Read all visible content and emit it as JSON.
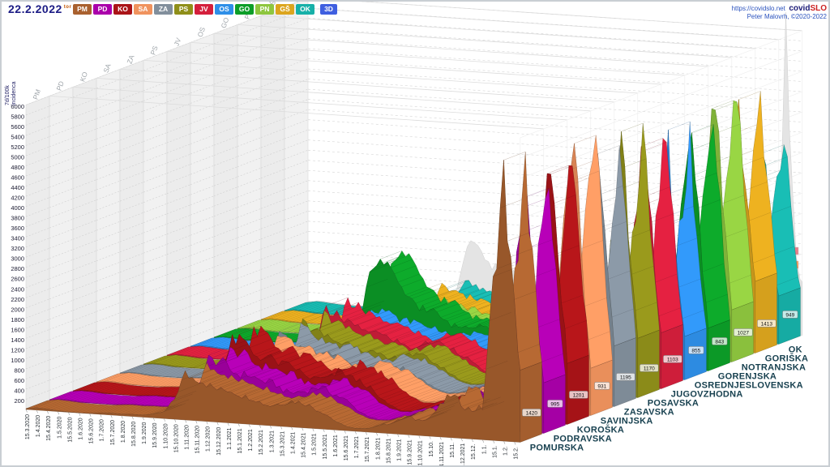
{
  "header": {
    "date": "22.2.2022",
    "day_abbrev": "tor",
    "mode_button": "3D",
    "mode_color": "#3f5fe0",
    "link": "https://covidslo.net",
    "brand_part1": "covid",
    "brand_part2": "SLO",
    "credit": "Peter Malovrh, ©2020-2022"
  },
  "axes": {
    "y_title_line1": "7d/100k",
    "y_title_line2": "incidenca",
    "y_min": 0,
    "y_max": 6000,
    "y_step": 200,
    "x_ticks": [
      "15.3.2020",
      "1.4.2020",
      "15.4.2020",
      "1.5.2020",
      "15.5.2020",
      "1.6.2020",
      "15.6.2020",
      "1.7.2020",
      "15.7.2020",
      "1.8.2020",
      "15.8.2020",
      "1.9.2020",
      "15.9.2020",
      "1.10.2020",
      "15.10.2020",
      "1.11.2020",
      "15.11.2020",
      "1.12.2020",
      "15.12.2020",
      "1.1.2021",
      "15.1.2021",
      "1.2.2021",
      "15.2.2021",
      "1.3.2021",
      "15.3.2021",
      "1.4.2021",
      "15.4.2021",
      "1.5.2021",
      "15.5.2021",
      "1.6.2021",
      "15.6.2021",
      "1.7.2021",
      "15.7.2021",
      "1.8.2021",
      "15.8.2021",
      "1.9.2021",
      "15.9.2021",
      "1.10.2021",
      "15.10.",
      "1.11.2021",
      "15.11.",
      "1.12.2021",
      "15.12.",
      "1.1.",
      "15.1.",
      "1.2.",
      "15.2."
    ]
  },
  "chart_data": {
    "type": "area",
    "projection": "3d-ribbons",
    "title": "",
    "ylabel": "7d/100k incidenca",
    "ylim": [
      0,
      6000
    ],
    "categories": [
      "15.3.2020",
      "1.4.2020",
      "15.4.2020",
      "1.5.2020",
      "15.5.2020",
      "1.6.2020",
      "15.6.2020",
      "1.7.2020",
      "15.7.2020",
      "1.8.2020",
      "15.8.2020",
      "1.9.2020",
      "15.9.2020",
      "1.10.2020",
      "15.10.2020",
      "1.11.2020",
      "15.11.2020",
      "1.12.2020",
      "15.12.2020",
      "1.1.2021",
      "15.1.2021",
      "1.2.2021",
      "15.2.2021",
      "1.3.2021",
      "15.3.2021",
      "1.4.2021",
      "15.4.2021",
      "1.5.2021",
      "15.5.2021",
      "1.6.2021",
      "15.6.2021",
      "1.7.2021",
      "15.7.2021",
      "1.8.2021",
      "15.8.2021",
      "1.9.2021",
      "15.9.2021",
      "1.10.2021",
      "15.10.2021",
      "1.11.2021",
      "15.11.2021",
      "1.12.2021",
      "15.12.2021",
      "1.1.2022",
      "15.1.2022",
      "1.2.2022",
      "15.2.2022",
      "22.2.2022"
    ],
    "series": [
      {
        "code": "PM",
        "name": "POMURSKA",
        "color": "#a9612f",
        "end_label": "1420",
        "values": [
          15,
          45,
          35,
          15,
          6,
          5,
          8,
          25,
          40,
          35,
          40,
          45,
          70,
          133,
          400,
          900,
          855,
          720,
          665,
          630,
          590,
          530,
          450,
          400,
          435,
          530,
          485,
          425,
          325,
          190,
          95,
          55,
          65,
          130,
          190,
          260,
          350,
          310,
          360,
          620,
          820,
          700,
          560,
          620,
          3100,
          5050,
          2700,
          1420
        ]
      },
      {
        "code": "PD",
        "name": "PODRAVSKA",
        "color": "#aa00aa",
        "end_label": "995",
        "values": [
          15,
          45,
          35,
          15,
          6,
          5,
          8,
          25,
          40,
          35,
          40,
          45,
          70,
          155,
          465,
          1050,
          1000,
          840,
          775,
          730,
          685,
          620,
          520,
          465,
          510,
          620,
          565,
          495,
          375,
          220,
          110,
          52,
          62,
          124,
          180,
          247,
          332,
          295,
          342,
          590,
          780,
          665,
          530,
          590,
          3220,
          5200,
          2100,
          995
        ]
      },
      {
        "code": "KO",
        "name": "KOROŠKA",
        "color": "#aa1418",
        "end_label": "1201",
        "values": [
          15,
          45,
          35,
          15,
          6,
          5,
          8,
          25,
          40,
          35,
          40,
          45,
          70,
          184,
          553,
          1250,
          1190,
          1000,
          925,
          870,
          815,
          735,
          620,
          553,
          605,
          735,
          670,
          590,
          447,
          263,
          132,
          50,
          59,
          117,
          171,
          234,
          315,
          279,
          324,
          558,
          738,
          630,
          504,
          558,
          3370,
          5430,
          2520,
          1201
        ]
      },
      {
        "code": "SA",
        "name": "SAVINJSKA",
        "color": "#f0935e",
        "end_label": "931",
        "values": [
          15,
          45,
          35,
          15,
          6,
          5,
          8,
          25,
          40,
          35,
          40,
          45,
          70,
          147,
          442,
          1000,
          950,
          800,
          737,
          695,
          653,
          590,
          495,
          442,
          484,
          590,
          537,
          474,
          358,
          211,
          105,
          55,
          65,
          130,
          190,
          260,
          350,
          310,
          360,
          620,
          820,
          700,
          560,
          620,
          3500,
          5650,
          1950,
          931
        ]
      },
      {
        "code": "ZA",
        "name": "ZASAVSKA",
        "color": "#828f9c",
        "end_label": "1195",
        "values": [
          15,
          45,
          35,
          15,
          6,
          5,
          8,
          25,
          40,
          35,
          40,
          45,
          70,
          140,
          420,
          950,
          900,
          760,
          700,
          660,
          620,
          560,
          470,
          420,
          460,
          560,
          510,
          450,
          340,
          200,
          100,
          58,
          68,
          137,
          200,
          273,
          368,
          326,
          378,
          651,
          861,
          735,
          588,
          651,
          2850,
          4600,
          2500,
          1195
        ]
      },
      {
        "code": "PS",
        "name": "POSAVSKA",
        "color": "#8f8f1a",
        "end_label": "1170",
        "values": [
          15,
          45,
          35,
          15,
          6,
          5,
          8,
          25,
          40,
          35,
          40,
          45,
          70,
          147,
          442,
          1000,
          950,
          800,
          737,
          695,
          653,
          590,
          495,
          442,
          484,
          590,
          537,
          474,
          358,
          211,
          105,
          52,
          62,
          124,
          180,
          247,
          332,
          295,
          342,
          590,
          780,
          665,
          530,
          590,
          3100,
          5000,
          2450,
          1170
        ]
      },
      {
        "code": "JV",
        "name": "JUGOVZHODNA",
        "color": "#d41f3c",
        "end_label": "1103",
        "values": [
          15,
          45,
          35,
          15,
          6,
          5,
          8,
          25,
          40,
          35,
          40,
          45,
          70,
          162,
          486,
          1100,
          1045,
          880,
          810,
          764,
          718,
          648,
          544,
          486,
          532,
          648,
          590,
          521,
          394,
          232,
          116,
          55,
          65,
          130,
          190,
          260,
          350,
          310,
          360,
          620,
          820,
          700,
          560,
          620,
          3130,
          5050,
          2320,
          1103
        ]
      },
      {
        "code": "OS",
        "name": "OSREDNJESLOVENSKA",
        "color": "#2e8fe8",
        "end_label": "855",
        "values": [
          15,
          45,
          35,
          15,
          6,
          5,
          8,
          25,
          40,
          35,
          40,
          45,
          70,
          125,
          376,
          850,
          808,
          680,
          627,
          591,
          555,
          501,
          421,
          376,
          412,
          501,
          456,
          403,
          304,
          179,
          90,
          55,
          65,
          130,
          190,
          260,
          350,
          310,
          360,
          620,
          820,
          700,
          560,
          620,
          2730,
          4400,
          1800,
          855
        ]
      },
      {
        "code": "GO",
        "name": "GORENJSKA",
        "color": "#0c9e28",
        "end_label": "843",
        "values": [
          15,
          45,
          35,
          15,
          6,
          5,
          8,
          25,
          40,
          35,
          40,
          45,
          70,
          258,
          774,
          1750,
          1660,
          1400,
          1100,
          950,
          850,
          750,
          620,
          520,
          560,
          650,
          590,
          520,
          390,
          225,
          110,
          52,
          62,
          124,
          180,
          247,
          332,
          295,
          342,
          590,
          780,
          665,
          530,
          590,
          3160,
          5100,
          1900,
          843
        ]
      },
      {
        "code": "PN",
        "name": "NOTRANJSKA",
        "color": "#8ec63f",
        "end_label": "1027",
        "values": [
          15,
          45,
          35,
          15,
          6,
          5,
          8,
          25,
          40,
          35,
          40,
          45,
          70,
          118,
          354,
          800,
          760,
          640,
          590,
          556,
          522,
          472,
          396,
          354,
          387,
          472,
          429,
          379,
          286,
          168,
          84,
          55,
          65,
          130,
          190,
          260,
          350,
          310,
          360,
          620,
          820,
          700,
          560,
          620,
          3530,
          5690,
          2200,
          1027
        ]
      },
      {
        "code": "GŠ",
        "name": "GORIŠKA",
        "color": "#dca51e",
        "end_label": "1413",
        "values": [
          15,
          45,
          35,
          15,
          6,
          5,
          8,
          25,
          40,
          35,
          40,
          45,
          70,
          103,
          310,
          700,
          665,
          560,
          516,
          486,
          457,
          413,
          346,
          310,
          339,
          413,
          375,
          332,
          251,
          147,
          74,
          50,
          59,
          117,
          171,
          234,
          315,
          279,
          324,
          558,
          738,
          630,
          504,
          558,
          2940,
          4740,
          2700,
          1413
        ]
      },
      {
        "code": "OK",
        "name": "OK",
        "color": "#17b0a8",
        "end_label": "949",
        "values": [
          15,
          45,
          35,
          15,
          6,
          5,
          8,
          25,
          40,
          35,
          40,
          45,
          70,
          88,
          265,
          600,
          570,
          480,
          442,
          417,
          391,
          354,
          297,
          265,
          291,
          354,
          322,
          284,
          215,
          126,
          63,
          52,
          62,
          124,
          180,
          247,
          332,
          295,
          342,
          590,
          780,
          665,
          530,
          590,
          2570,
          4140,
          1900,
          949
        ]
      }
    ],
    "silhouette": {
      "name": "SLO",
      "color": "#e4e4e4",
      "values": [
        15,
        45,
        35,
        15,
        6,
        5,
        8,
        25,
        40,
        35,
        40,
        45,
        70,
        200,
        500,
        1400,
        1300,
        1000,
        900,
        850,
        800,
        700,
        600,
        520,
        560,
        680,
        620,
        550,
        420,
        240,
        120,
        55,
        65,
        130,
        190,
        260,
        350,
        310,
        360,
        620,
        820,
        700,
        560,
        620,
        900,
        5620,
        1400,
        1050
      ],
      "end_marker_colors": [
        "#e87f8a",
        "#f59a5e",
        "#f7d98f",
        "#e3d34f",
        "#79b84a"
      ]
    },
    "legend_position": "buttons-top"
  },
  "wall_labels": [
    "PM",
    "PD",
    "KO",
    "SA",
    "ZA",
    "PS",
    "JV",
    "OS",
    "GO",
    "PN",
    "GŠ",
    "OK"
  ]
}
